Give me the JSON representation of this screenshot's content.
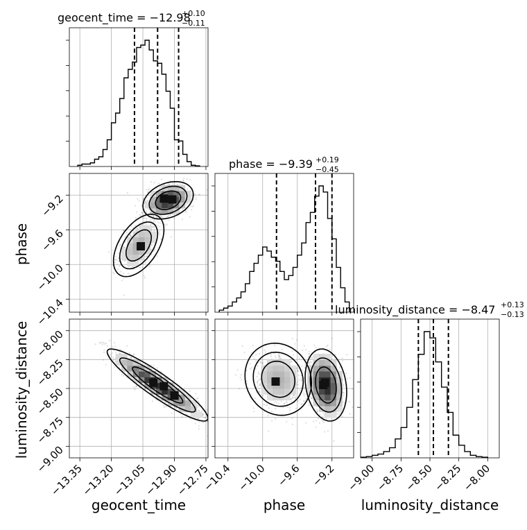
{
  "chart_data": {
    "type": "corner",
    "parameters": [
      "geocent_time",
      "phase",
      "luminosity_distance"
    ],
    "titles": [
      {
        "parameter": "geocent_time",
        "text": "geocent_time = −12.98",
        "plus": "+0.10",
        "minus": "−0.11"
      },
      {
        "parameter": "phase",
        "text": "phase = −9.39",
        "plus": "+0.19",
        "minus": "−0.45"
      },
      {
        "parameter": "luminosity_distance",
        "text": "luminosity_distance = −8.47",
        "plus": "+0.13",
        "minus": "−0.13"
      }
    ],
    "axes": {
      "geocent_time": {
        "range": [
          -13.4,
          -12.74
        ],
        "ticks": [
          -13.35,
          -13.2,
          -13.05,
          -12.9,
          -12.75
        ],
        "tick_labels": [
          "−13.35",
          "−13.20",
          "−13.05",
          "−12.90",
          "−12.75"
        ],
        "label": "geocent_time"
      },
      "phase": {
        "range": [
          -10.55,
          -8.95
        ],
        "ticks": [
          -10.4,
          -10.0,
          -9.6,
          -9.2
        ],
        "tick_labels": [
          "−10.4",
          "−10.0",
          "−9.6",
          "−9.2"
        ],
        "label": "phase"
      },
      "luminosity_distance": {
        "range": [
          -9.1,
          -7.9
        ],
        "ticks": [
          -9.0,
          -8.75,
          -8.5,
          -8.25,
          -8.0
        ],
        "tick_labels": [
          "−9.00",
          "−8.75",
          "−8.50",
          "−8.25",
          "−8.00"
        ],
        "label": "luminosity_distance"
      }
    },
    "marginals": {
      "geocent_time": {
        "bin_edges": [
          -13.36,
          -13.34,
          -13.32,
          -13.3,
          -13.28,
          -13.26,
          -13.24,
          -13.22,
          -13.2,
          -13.18,
          -13.16,
          -13.14,
          -13.12,
          -13.1,
          -13.08,
          -13.06,
          -13.04,
          -13.02,
          -13.0,
          -12.98,
          -12.96,
          -12.94,
          -12.92,
          -12.9,
          -12.88,
          -12.86,
          -12.84,
          -12.82,
          -12.8,
          -12.78
        ],
        "counts": [
          1,
          2,
          2,
          3,
          6,
          8,
          14,
          22,
          36,
          44,
          56,
          73,
          80,
          86,
          98,
          100,
          104,
          96,
          87,
          85,
          76,
          62,
          48,
          22,
          21,
          10,
          4,
          1,
          0.5
        ]
      },
      "phase": {
        "bin_edges": [
          -10.5,
          -10.45,
          -10.4,
          -10.35,
          -10.3,
          -10.25,
          -10.2,
          -10.15,
          -10.1,
          -10.05,
          -10.0,
          -9.95,
          -9.9,
          -9.85,
          -9.8,
          -9.75,
          -9.7,
          -9.65,
          -9.6,
          -9.55,
          -9.5,
          -9.45,
          -9.4,
          -9.35,
          -9.3,
          -9.25,
          -9.2,
          -9.15,
          -9.1,
          -9.05,
          -9.0
        ],
        "counts": [
          1,
          2,
          3,
          5,
          7,
          10,
          14,
          20,
          24,
          28,
          32,
          30,
          27,
          25,
          20,
          16,
          18,
          22,
          28,
          34,
          44,
          49,
          57,
          62,
          59,
          46,
          36,
          22,
          12,
          5
        ]
      },
      "luminosity_distance": {
        "bin_edges": [
          -9.15,
          -9.1,
          -9.05,
          -9.0,
          -8.95,
          -8.9,
          -8.85,
          -8.8,
          -8.75,
          -8.7,
          -8.65,
          -8.6,
          -8.55,
          -8.5,
          -8.45,
          -8.4,
          -8.35,
          -8.3,
          -8.25,
          -8.2,
          -8.15,
          -8.1,
          -8.05,
          -8.0
        ],
        "counts": [
          0,
          0.5,
          1,
          2,
          3,
          5,
          8,
          15,
          24,
          40,
          62,
          82,
          100,
          95,
          76,
          56,
          36,
          18,
          10,
          5,
          2,
          1,
          0.5
        ]
      }
    },
    "quantiles": {
      "geocent_time": [
        -13.09,
        -12.98,
        -12.88
      ],
      "phase": [
        -9.84,
        -9.39,
        -9.2
      ],
      "luminosity_distance": [
        -8.6,
        -8.47,
        -8.34
      ]
    },
    "pairs": [
      {
        "x": "geocent_time",
        "y": "phase",
        "modes": [
          {
            "center": [
              -12.93,
              -9.26
            ],
            "sigma": [
              0.05,
              0.09
            ],
            "weight": 0.65,
            "rho": 0.3
          },
          {
            "center": [
              -13.07,
              -9.78
            ],
            "sigma": [
              0.05,
              0.15
            ],
            "weight": 0.35,
            "rho": 0.5
          }
        ],
        "density_peaks": [
          [
            -12.95,
            -9.24
          ],
          [
            -12.91,
            -9.25
          ],
          [
            -13.06,
            -9.79
          ]
        ]
      },
      {
        "x": "geocent_time",
        "y": "luminosity_distance",
        "modes": [
          {
            "center": [
              -12.98,
              -8.47
            ],
            "sigma": [
              0.1,
              0.13
            ],
            "weight": 1.0,
            "rho": -0.92
          }
        ],
        "density_peaks": [
          [
            -13.0,
            -8.45
          ],
          [
            -12.95,
            -8.48
          ],
          [
            -12.9,
            -8.56
          ]
        ]
      },
      {
        "x": "phase",
        "y": "luminosity_distance",
        "modes": [
          {
            "center": [
              -9.27,
              -8.47
            ],
            "sigma": [
              0.1,
              0.13
            ],
            "weight": 0.65,
            "rho": -0.2
          },
          {
            "center": [
              -9.82,
              -8.42
            ],
            "sigma": [
              0.16,
              0.13
            ],
            "weight": 0.35,
            "rho": -0.1
          }
        ],
        "density_peaks": [
          [
            -9.3,
            -8.47
          ],
          [
            -9.28,
            -8.45
          ],
          [
            -9.85,
            -8.44
          ]
        ]
      }
    ],
    "grid": true,
    "legend": "none"
  }
}
